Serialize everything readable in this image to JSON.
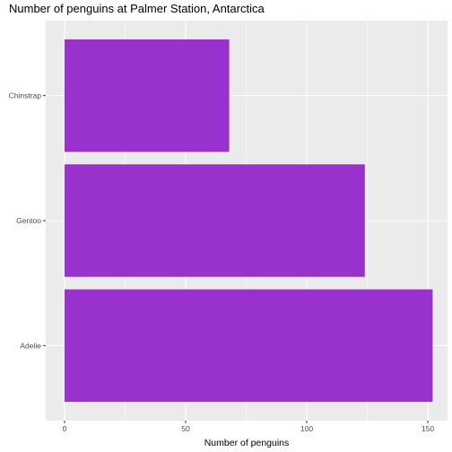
{
  "chart_data": {
    "type": "bar",
    "orientation": "horizontal",
    "title": "Number of penguins at Palmer Station, Antarctica",
    "xlabel": "Number of penguins",
    "ylabel": "",
    "categories": [
      "Adelie",
      "Gentoo",
      "Chinstrap"
    ],
    "values": [
      152,
      124,
      68
    ],
    "xlim": [
      0,
      160
    ],
    "xticks": [
      0,
      50,
      100,
      150
    ],
    "grid": true,
    "legend": "none",
    "bar_color": "#9932CC",
    "panel_color": "#EBEBEB",
    "grid_color": "#FFFFFF"
  }
}
